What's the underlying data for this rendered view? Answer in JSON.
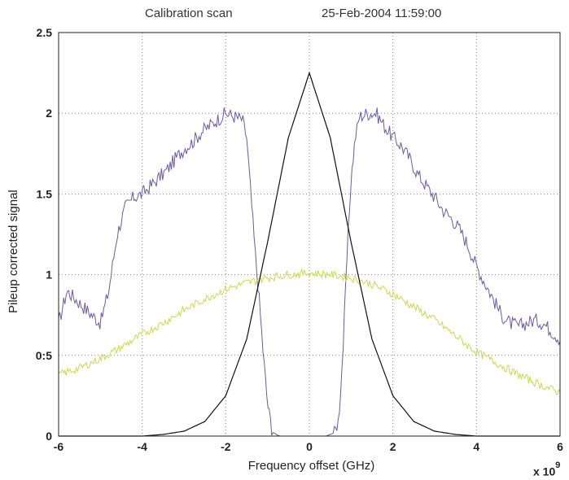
{
  "header": {
    "title_left": "Calibration scan",
    "title_right": "25-Feb-2004 11:59:00"
  },
  "chart_data": {
    "type": "line",
    "xlabel": "Frequency offset (GHz)",
    "ylabel": "Pileup corrected signal",
    "x_multiplier": "x 10",
    "x_multiplier_exp": "9",
    "xlim": [
      -6,
      6
    ],
    "ylim": [
      0,
      2.5
    ],
    "xticks": [
      -6,
      -4,
      -2,
      0,
      2,
      4,
      6
    ],
    "yticks": [
      0,
      0.5,
      1,
      1.5,
      2,
      2.5
    ],
    "ytick_labels": [
      "0",
      "0:5",
      "1",
      "1.5",
      "2",
      "2.5"
    ],
    "grid": true,
    "colors": {
      "purple": "#6a5aa8",
      "yellow": "#c8dc4a",
      "black": "#111111"
    },
    "series": [
      {
        "color_key": "purple",
        "x": [
          -6,
          -5.8,
          -5.6,
          -5.4,
          -5.2,
          -5.0,
          -4.8,
          -4.6,
          -4.4,
          -4.2,
          -4.0,
          -3.8,
          -3.6,
          -3.4,
          -3.2,
          -3.0,
          -2.8,
          -2.6,
          -2.4,
          -2.2,
          -2.0,
          -1.8,
          -1.6,
          -1.5,
          -1.4,
          -1.3,
          -1.2,
          -1.1,
          -1.0,
          -0.9,
          -0.8,
          -0.7,
          -0.6,
          -0.4,
          -0.2,
          0,
          0.2,
          0.4,
          0.6,
          0.7,
          0.8,
          0.9,
          1.0,
          1.1,
          1.2,
          1.4,
          1.6,
          1.8,
          2.0,
          2.2,
          2.4,
          2.6,
          2.8,
          3.0,
          3.2,
          3.4,
          3.6,
          3.8,
          4.0,
          4.2,
          4.4,
          4.6,
          4.8,
          5.0,
          5.2,
          5.4,
          5.6,
          5.8,
          6.0
        ],
        "y": [
          0.7,
          0.9,
          0.85,
          0.8,
          0.75,
          0.7,
          0.9,
          1.25,
          1.42,
          1.48,
          1.5,
          1.55,
          1.6,
          1.65,
          1.72,
          1.78,
          1.82,
          1.88,
          1.92,
          1.96,
          2.0,
          1.98,
          1.96,
          1.85,
          1.5,
          1.15,
          0.85,
          0.5,
          0.2,
          0.05,
          0.01,
          0.0,
          0.0,
          0.0,
          0.0,
          0.0,
          0.0,
          0.0,
          0.02,
          0.1,
          0.5,
          1.1,
          1.6,
          1.85,
          1.98,
          2.0,
          2.0,
          1.92,
          1.85,
          1.8,
          1.72,
          1.62,
          1.55,
          1.48,
          1.4,
          1.35,
          1.28,
          1.18,
          1.05,
          0.95,
          0.85,
          0.75,
          0.7,
          0.68,
          0.7,
          0.72,
          0.7,
          0.65,
          0.6
        ]
      },
      {
        "color_key": "yellow",
        "x": [
          -6,
          -5.5,
          -5,
          -4.5,
          -4,
          -3.5,
          -3,
          -2.5,
          -2,
          -1.5,
          -1,
          -0.5,
          0,
          0.5,
          1,
          1.5,
          2,
          2.5,
          3,
          3.5,
          4,
          4.5,
          5,
          5.5,
          6
        ],
        "y": [
          0.38,
          0.42,
          0.48,
          0.55,
          0.63,
          0.7,
          0.78,
          0.85,
          0.91,
          0.95,
          0.98,
          1.0,
          1.01,
          1.0,
          0.98,
          0.94,
          0.88,
          0.8,
          0.72,
          0.62,
          0.52,
          0.45,
          0.38,
          0.32,
          0.27
        ]
      },
      {
        "color_key": "black",
        "x": [
          -6,
          -5.5,
          -5,
          -4.5,
          -4,
          -3.5,
          -3,
          -2.5,
          -2,
          -1.5,
          -1,
          -0.5,
          0,
          0.5,
          1,
          1.5,
          2,
          2.5,
          3,
          3.5,
          4,
          4.5,
          5,
          5.5,
          6
        ],
        "y": [
          0.0,
          0.0,
          0.0,
          0.0,
          0.0,
          0.01,
          0.03,
          0.09,
          0.25,
          0.6,
          1.2,
          1.85,
          2.25,
          1.85,
          1.2,
          0.6,
          0.25,
          0.09,
          0.03,
          0.01,
          0.0,
          0.0,
          0.0,
          0.0,
          0.0
        ]
      }
    ]
  }
}
